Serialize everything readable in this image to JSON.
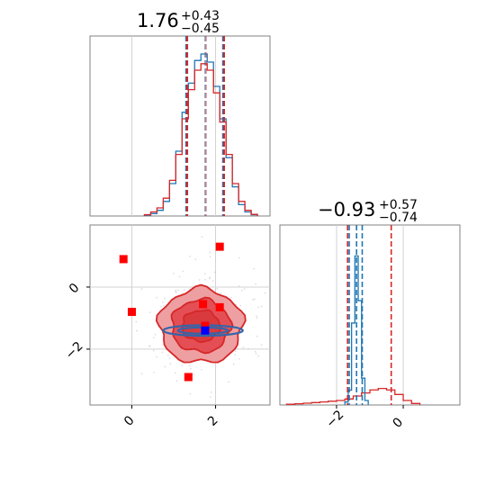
{
  "chart_data": [
    {
      "type": "histogram",
      "panel": "top-left",
      "title": {
        "value": "1.76",
        "upper": "+0.43",
        "lower": "−0.45"
      },
      "xlim": [
        -1.0,
        3.3
      ],
      "grid": true,
      "quantile_lines": {
        "blue": [
          1.31,
          1.76,
          2.19
        ],
        "red": [
          1.31,
          1.76,
          2.19
        ]
      },
      "bins": [
        0.3,
        0.45,
        0.6,
        0.75,
        0.9,
        1.05,
        1.2,
        1.35,
        1.5,
        1.65,
        1.8,
        1.95,
        2.1,
        2.25,
        2.4,
        2.55,
        2.7,
        2.85,
        3.0
      ],
      "series": [
        {
          "color": "#1f77b4",
          "values": [
            0.5,
            1.5,
            3.5,
            9,
            20,
            40,
            64,
            82,
            96,
            100,
            95,
            80,
            60,
            36,
            18,
            7,
            2.5,
            0.8
          ]
        },
        {
          "color": "#d62728",
          "values": [
            0.8,
            2.5,
            5,
            11,
            22,
            38,
            60,
            78,
            90,
            94,
            90,
            76,
            58,
            38,
            20,
            9,
            3.5,
            1
          ]
        }
      ]
    },
    {
      "type": "histogram",
      "panel": "bottom-right",
      "title": {
        "value": "−0.93",
        "upper": "+0.57",
        "lower": "−0.74"
      },
      "xlim": [
        -3.7,
        1.7
      ],
      "xticks": [
        -2,
        0
      ],
      "xtick_labels": [
        "−2",
        "0"
      ],
      "grid": true,
      "quantile_lines": {
        "blue": [
          -1.62,
          -1.4,
          -1.23
        ],
        "red": [
          -1.67,
          -0.93,
          -0.36
        ]
      },
      "series": [
        {
          "color": "#1f77b4",
          "bins": [
            -1.75,
            -1.65,
            -1.55,
            -1.45,
            -1.35,
            -1.25,
            -1.15,
            -1.05
          ],
          "values": [
            2,
            10,
            55,
            100,
            70,
            18,
            3
          ]
        },
        {
          "color": "#d62728",
          "bins": [
            -3.5,
            -3.25,
            -3.0,
            -2.75,
            -2.5,
            -2.25,
            -2.0,
            -1.75,
            -1.5,
            -1.25,
            -1.0,
            -0.75,
            -0.5,
            -0.25,
            0.0,
            0.25,
            0.5
          ],
          "values": [
            0.5,
            0.8,
            1.2,
            1.6,
            2,
            2.5,
            3,
            4,
            6,
            8,
            10,
            11,
            10,
            7,
            3,
            1
          ]
        }
      ]
    },
    {
      "type": "scatter",
      "panel": "bottom-left",
      "xlim": [
        -1.0,
        3.3
      ],
      "ylim": [
        -3.8,
        2.0
      ],
      "xticks": [
        0,
        2
      ],
      "xtick_labels": [
        "0",
        "2"
      ],
      "yticks": [
        0,
        -2
      ],
      "ytick_labels": [
        "0",
        "−2"
      ],
      "grid": true,
      "red_contours": [
        {
          "cx": 1.65,
          "cy": -1.25,
          "rx": 1.0,
          "ry": 1.2,
          "fill": "#ee9fa2"
        },
        {
          "cx": 1.65,
          "cy": -1.25,
          "rx": 0.7,
          "ry": 0.85,
          "fill": "#e34f54"
        },
        {
          "cx": 1.65,
          "cy": -1.25,
          "rx": 0.45,
          "ry": 0.5,
          "fill": "#d93a3e"
        }
      ],
      "blue_contours": [
        {
          "cx": 1.7,
          "cy": -1.4,
          "rx": 0.95,
          "ry": 0.17
        },
        {
          "cx": 1.7,
          "cy": -1.4,
          "rx": 0.6,
          "ry": 0.1
        }
      ],
      "red_points": [
        {
          "x": -0.2,
          "y": 0.9
        },
        {
          "x": 0.0,
          "y": -0.8
        },
        {
          "x": 2.1,
          "y": 1.3
        },
        {
          "x": 1.7,
          "y": -0.55
        },
        {
          "x": 2.1,
          "y": -0.65
        },
        {
          "x": 1.75,
          "y": -1.25
        },
        {
          "x": 1.35,
          "y": -2.9
        }
      ],
      "blue_points": [
        {
          "x": 1.75,
          "y": -1.4
        }
      ]
    }
  ],
  "colors": {
    "blue": "#1f77b4",
    "red": "#d62728",
    "axis": "#808080",
    "grid": "#d3d3d3"
  }
}
